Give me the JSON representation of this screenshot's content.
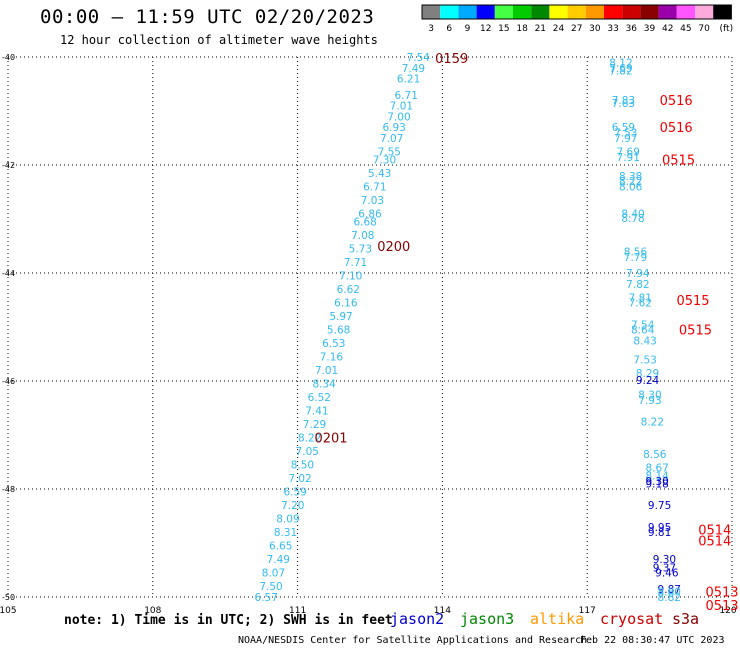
{
  "header": {
    "title": "00:00 – 11:59 UTC 02/20/2023",
    "subtitle": "12 hour collection of altimeter wave heights"
  },
  "colorbar": {
    "labels": [
      "3",
      "6",
      "9",
      "12",
      "15",
      "18",
      "21",
      "24",
      "27",
      "30",
      "33",
      "36",
      "39",
      "42",
      "45",
      "70",
      "(ft)"
    ],
    "colors": [
      "#808080",
      "#00ffff",
      "#00aaff",
      "#0000ff",
      "#44ff44",
      "#00cc00",
      "#008800",
      "#ffff00",
      "#ffcc00",
      "#ff9900",
      "#ff0000",
      "#cc0000",
      "#880000",
      "#9900aa",
      "#ff55ff",
      "#ffaadd",
      "#000000"
    ]
  },
  "footer": {
    "note": "note: 1) Time is in UTC; 2) SWH is in feet",
    "satellites": [
      {
        "name": "jason2",
        "color": "#0000cc"
      },
      {
        "name": "jason3",
        "color": "#008800"
      },
      {
        "name": "altika",
        "color": "#ff9900"
      },
      {
        "name": "cryosat",
        "color": "#cc0000"
      },
      {
        "name": "s3a",
        "color": "#880000"
      }
    ],
    "credit": "NOAA/NESDIS Center for Satellite Applications and Research",
    "timestamp": "Feb 22 08:30:47 UTC 2023"
  },
  "chart_data": {
    "type": "scatter",
    "xlim": [
      105,
      120
    ],
    "ylim": [
      -50,
      -40
    ],
    "x_ticks": [
      "105",
      "108",
      "111",
      "114",
      "117",
      "120"
    ],
    "y_ticks": [
      "-40",
      "-42",
      "-44",
      "-46",
      "-48",
      "-50"
    ],
    "grid": true,
    "tracks": [
      {
        "color": "#33bbee",
        "points": [
          [
            113.5,
            -40.0,
            "7.54"
          ],
          [
            113.4,
            -40.2,
            "7.49"
          ],
          [
            113.3,
            -40.4,
            "6.21"
          ],
          [
            113.25,
            -40.7,
            "6.71"
          ],
          [
            113.15,
            -40.9,
            "7.01"
          ],
          [
            113.1,
            -41.1,
            "7.00"
          ],
          [
            113.0,
            -41.3,
            "6.93"
          ],
          [
            112.95,
            -41.5,
            "7.07"
          ],
          [
            112.9,
            -41.75,
            "7.55"
          ],
          [
            112.8,
            -41.9,
            "7.30"
          ],
          [
            112.7,
            -42.15,
            "5.43"
          ],
          [
            112.6,
            -42.4,
            "6.71"
          ],
          [
            112.55,
            -42.65,
            "7.03"
          ],
          [
            112.5,
            -42.9,
            "6.86"
          ],
          [
            112.4,
            -43.05,
            "6.68"
          ],
          [
            112.35,
            -43.3,
            "7.08"
          ],
          [
            112.3,
            -43.55,
            "5.73"
          ],
          [
            112.2,
            -43.8,
            "7.71"
          ],
          [
            112.1,
            -44.05,
            "7.10"
          ],
          [
            112.05,
            -44.3,
            "6.62"
          ],
          [
            112.0,
            -44.55,
            "6.16"
          ],
          [
            111.9,
            -44.8,
            "5.97"
          ],
          [
            111.85,
            -45.05,
            "5.68"
          ],
          [
            111.75,
            -45.3,
            "6.53"
          ],
          [
            111.7,
            -45.55,
            "7.16"
          ],
          [
            111.6,
            -45.8,
            "7.01"
          ],
          [
            111.55,
            -46.05,
            "8.34"
          ],
          [
            111.45,
            -46.3,
            "6.52"
          ],
          [
            111.4,
            -46.55,
            "7.41"
          ],
          [
            111.35,
            -46.8,
            "7.29"
          ],
          [
            111.25,
            -47.05,
            "8.22"
          ],
          [
            111.2,
            -47.3,
            "7.05"
          ],
          [
            111.1,
            -47.55,
            "8.50"
          ],
          [
            111.05,
            -47.8,
            "7.02"
          ],
          [
            110.95,
            -48.05,
            "6.59"
          ],
          [
            110.9,
            -48.3,
            "7.20"
          ],
          [
            110.8,
            -48.55,
            "8.09"
          ],
          [
            110.75,
            -48.8,
            "8.31"
          ],
          [
            110.65,
            -49.05,
            "6.65"
          ],
          [
            110.6,
            -49.3,
            "7.49"
          ],
          [
            110.5,
            -49.55,
            "8.07"
          ],
          [
            110.45,
            -49.8,
            "7.50"
          ],
          [
            110.35,
            -50.0,
            "6.57"
          ]
        ]
      },
      {
        "color": "#33bbee",
        "points": [
          [
            117.7,
            -40.1,
            "8.12"
          ],
          [
            117.7,
            -40.2,
            "7.69"
          ],
          [
            117.7,
            -40.25,
            "7.82"
          ],
          [
            117.75,
            -40.8,
            "7.83"
          ],
          [
            117.75,
            -40.85,
            "7.63"
          ],
          [
            117.75,
            -41.3,
            "6.59"
          ],
          [
            117.8,
            -41.4,
            "7.53"
          ],
          [
            117.8,
            -41.5,
            "7.97"
          ],
          [
            117.85,
            -41.75,
            "7.69"
          ],
          [
            117.85,
            -41.85,
            "7.91"
          ],
          [
            117.9,
            -42.2,
            "8.38"
          ],
          [
            117.9,
            -42.3,
            "8.22"
          ],
          [
            117.9,
            -42.4,
            "8.06"
          ],
          [
            117.95,
            -42.9,
            "8.40"
          ],
          [
            117.95,
            -42.98,
            "8.78"
          ],
          [
            118.0,
            -43.6,
            "8.56"
          ],
          [
            118.0,
            -43.7,
            "7.79"
          ],
          [
            118.05,
            -44.0,
            "7.94"
          ],
          [
            118.05,
            -44.2,
            "7.82"
          ],
          [
            118.1,
            -44.45,
            "7.81"
          ],
          [
            118.1,
            -44.55,
            "7.62"
          ],
          [
            118.15,
            -44.95,
            "7.54"
          ],
          [
            118.15,
            -45.05,
            "8.64"
          ],
          [
            118.2,
            -45.25,
            "8.43"
          ],
          [
            118.2,
            -45.6,
            "7.53"
          ],
          [
            118.25,
            -45.85,
            "8.29"
          ],
          [
            118.3,
            -46.25,
            "8.30"
          ],
          [
            118.3,
            -46.35,
            "7.93"
          ],
          [
            118.35,
            -46.75,
            "8.22"
          ],
          [
            118.4,
            -47.35,
            "8.56"
          ],
          [
            118.45,
            -47.6,
            "8.67"
          ],
          [
            118.45,
            -47.75,
            "8.14"
          ]
        ]
      },
      {
        "color": "#0000cc",
        "points": [
          [
            118.25,
            -45.98,
            "9.24"
          ],
          [
            118.45,
            -47.85,
            "9.30"
          ],
          [
            118.45,
            -47.9,
            "9.18"
          ],
          [
            118.5,
            -48.3,
            "9.75"
          ],
          [
            118.5,
            -48.7,
            "9.95"
          ],
          [
            118.5,
            -48.8,
            "9.81"
          ],
          [
            118.6,
            -49.3,
            "9.30"
          ],
          [
            118.6,
            -49.45,
            "9.37"
          ],
          [
            118.65,
            -49.55,
            "9.46"
          ],
          [
            118.7,
            -49.85,
            "9.87"
          ]
        ]
      },
      {
        "color": "#33bbee",
        "points": [
          [
            118.7,
            -49.9,
            "8.80"
          ],
          [
            118.7,
            -50.0,
            "8.82"
          ]
        ]
      }
    ],
    "time_labels": [
      {
        "x": 113.85,
        "y": -40.02,
        "text": "0159",
        "color": "#880000"
      },
      {
        "x": 112.65,
        "y": -43.5,
        "text": "0200",
        "color": "#880000"
      },
      {
        "x": 111.35,
        "y": -47.05,
        "text": "0201",
        "color": "#880000"
      },
      {
        "x": 118.5,
        "y": -40.8,
        "text": "0516",
        "color": "#ee0000"
      },
      {
        "x": 118.5,
        "y": -41.3,
        "text": "0516",
        "color": "#ee0000"
      },
      {
        "x": 118.55,
        "y": -41.9,
        "text": "0515",
        "color": "#ee0000"
      },
      {
        "x": 118.85,
        "y": -44.5,
        "text": "0515",
        "color": "#ee0000"
      },
      {
        "x": 118.9,
        "y": -45.05,
        "text": "0515",
        "color": "#ee0000"
      },
      {
        "x": 119.3,
        "y": -48.75,
        "text": "0514",
        "color": "#ee0000"
      },
      {
        "x": 119.3,
        "y": -48.95,
        "text": "0514",
        "color": "#ee0000"
      },
      {
        "x": 119.45,
        "y": -49.9,
        "text": "0513",
        "color": "#ee0000"
      },
      {
        "x": 119.45,
        "y": -50.15,
        "text": "0513",
        "color": "#ee0000"
      }
    ]
  }
}
